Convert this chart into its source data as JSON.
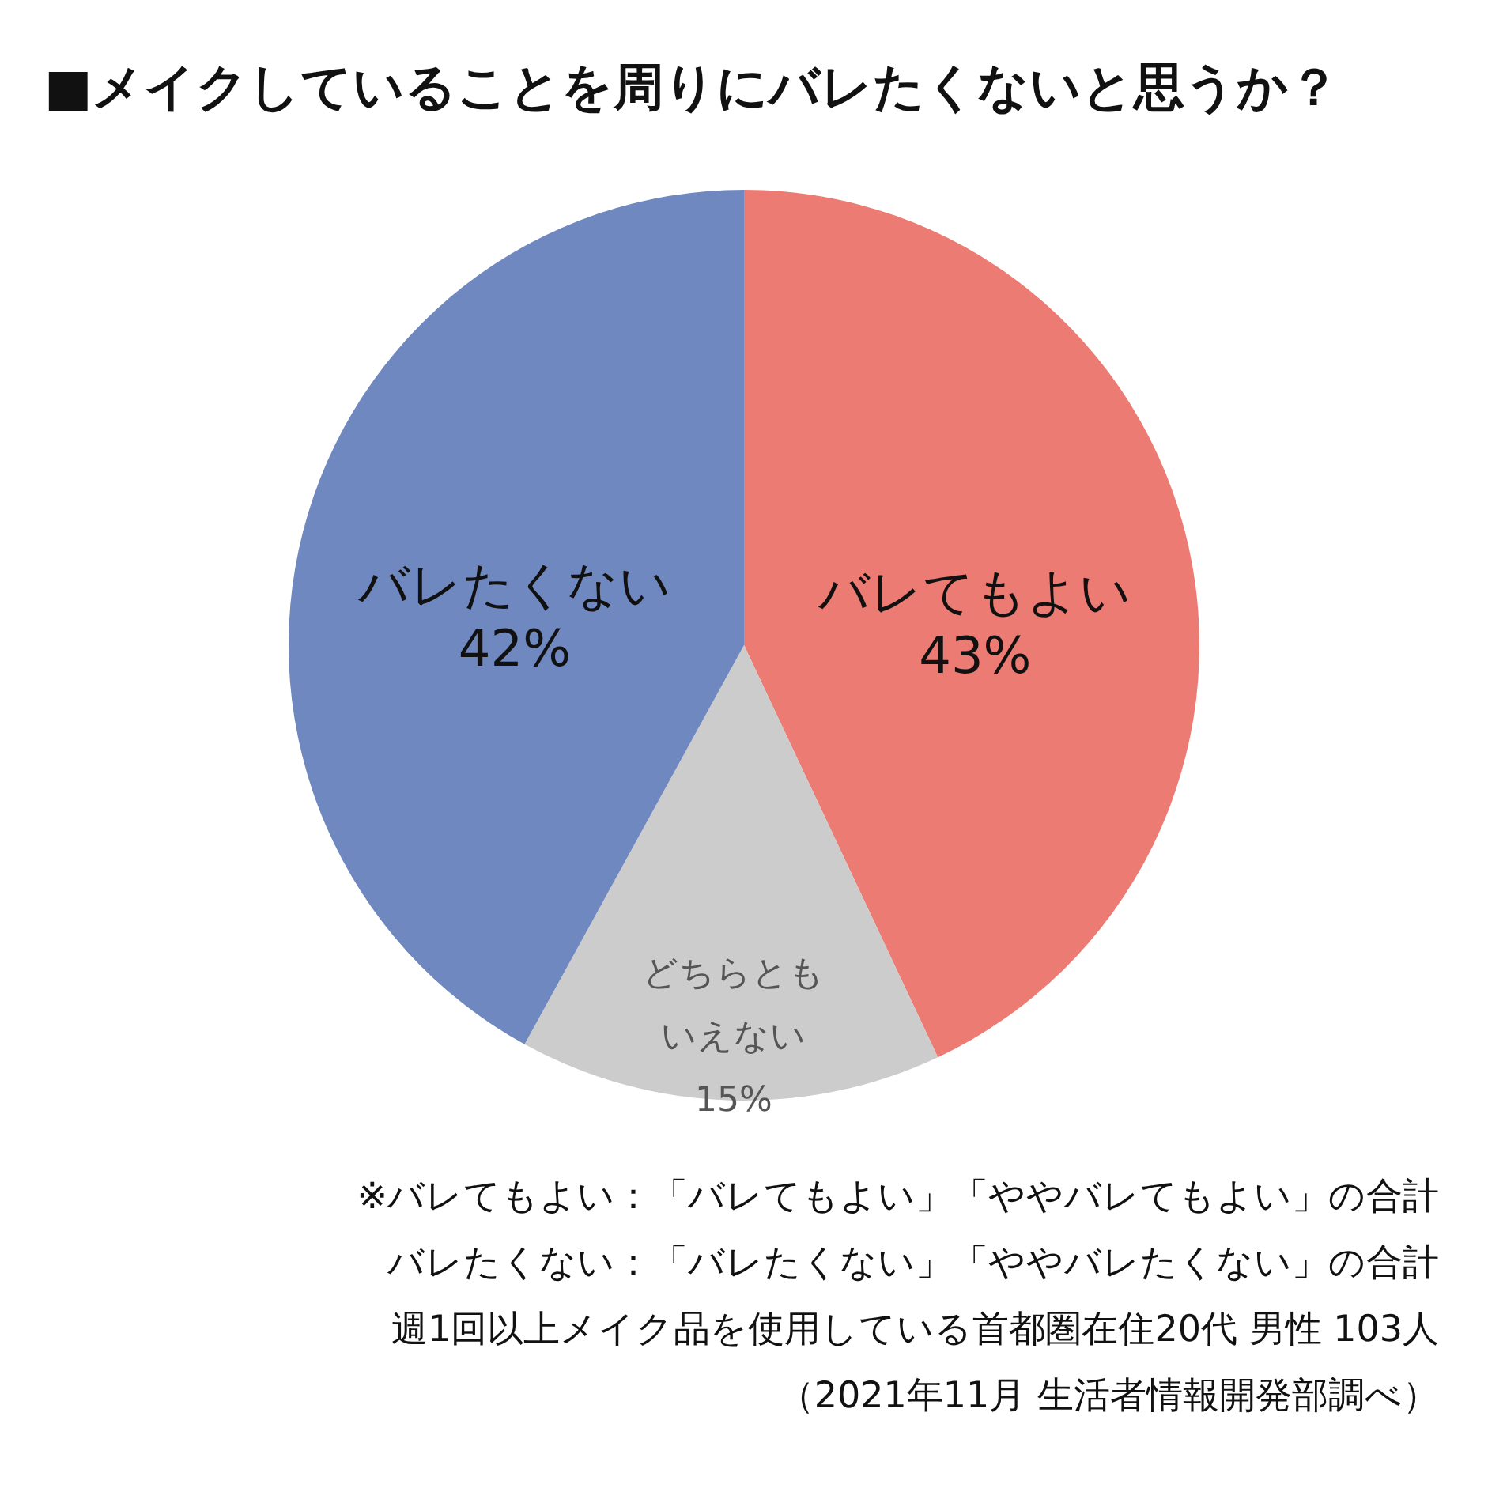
{
  "chart_data": {
    "type": "pie",
    "title": "■メイクしていることを周りにバレたくないと思うか？",
    "categories": [
      "バレてもよい",
      "どちらともいえない",
      "バレたくない"
    ],
    "values": [
      43,
      15,
      42
    ],
    "colors": [
      "#ec7b73",
      "#cccccc",
      "#7088c0"
    ],
    "value_labels": [
      "43%",
      "15%",
      "42%"
    ],
    "annotations": [
      "※バレてもよい：「バレてもよい」「ややバレてもよい」の合計",
      "バレたくない：「バレたくない」「ややバレたくない」の合計",
      "週1回以上メイク品を使用している首都圏在住20代 男性 103人",
      "（2021年11月 生活者情報開発部調べ）"
    ]
  }
}
